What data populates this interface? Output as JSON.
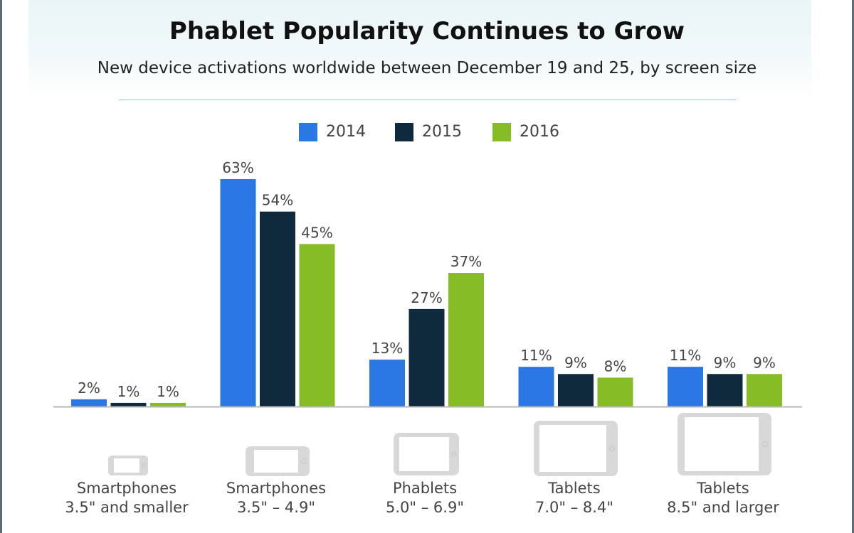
{
  "chart_data": {
    "type": "bar",
    "title": "Phablet Popularity Continues to Grow",
    "subtitle": "New device activations worldwide between December 19 and 25, by screen size",
    "categories": [
      {
        "name": "Smartphones",
        "range": "3.5\" and smaller"
      },
      {
        "name": "Smartphones",
        "range": "3.5\" – 4.9\""
      },
      {
        "name": "Phablets",
        "range": "5.0\" – 6.9\""
      },
      {
        "name": "Tablets",
        "range": "7.0\" – 8.4\""
      },
      {
        "name": "Tablets",
        "range": "8.5\" and larger"
      }
    ],
    "series": [
      {
        "name": "2014",
        "color": "#2b78e4",
        "values": [
          2,
          63,
          13,
          11,
          11
        ],
        "labels": [
          "2%",
          "63%",
          "13%",
          "11%",
          "11%"
        ]
      },
      {
        "name": "2015",
        "color": "#0f2a3d",
        "values": [
          1,
          54,
          27,
          9,
          9
        ],
        "labels": [
          "1%",
          "54%",
          "27%",
          "9%",
          "9%"
        ]
      },
      {
        "name": "2016",
        "color": "#86bc25",
        "values": [
          1,
          45,
          37,
          8,
          9
        ],
        "labels": [
          "1%",
          "45%",
          "37%",
          "8%",
          "9%"
        ]
      }
    ],
    "ylim": [
      0,
      63
    ],
    "unit": "%",
    "icons": [
      "phone-small-icon",
      "phone-icon",
      "phablet-icon",
      "tablet-small-icon",
      "tablet-large-icon"
    ]
  }
}
